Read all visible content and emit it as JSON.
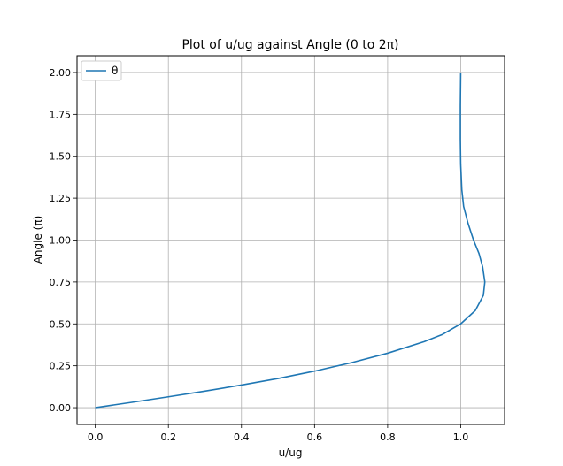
{
  "chart_data": {
    "type": "line",
    "title": "Plot of u/ug against Angle (0 to 2π)",
    "xlabel": "u/ug",
    "ylabel": "Angle (π)",
    "xlim": [
      -0.05,
      1.12
    ],
    "ylim": [
      -0.1,
      2.1
    ],
    "xticks": [
      "0.0",
      "0.2",
      "0.4",
      "0.6",
      "0.8",
      "1.0"
    ],
    "yticks": [
      "0.00",
      "0.25",
      "0.50",
      "0.75",
      "1.00",
      "1.25",
      "1.50",
      "1.75",
      "2.00"
    ],
    "grid": true,
    "legend_position": "upper-left",
    "series": [
      {
        "name": "θ",
        "color": "#1f77b4",
        "x": [
          0.0,
          0.05,
          0.1,
          0.2,
          0.3,
          0.4,
          0.5,
          0.6,
          0.7,
          0.8,
          0.9,
          0.95,
          1.0,
          1.04,
          1.062,
          1.066,
          1.06,
          1.05,
          1.035,
          1.02,
          1.008,
          1.003,
          1.0,
          0.999,
          0.999,
          1.0
        ],
        "y": [
          0.0,
          0.016,
          0.032,
          0.065,
          0.099,
          0.135,
          0.174,
          0.218,
          0.268,
          0.325,
          0.394,
          0.437,
          0.5,
          0.58,
          0.67,
          0.75,
          0.84,
          0.92,
          1.0,
          1.1,
          1.2,
          1.3,
          1.45,
          1.6,
          1.8,
          2.0
        ]
      }
    ]
  }
}
